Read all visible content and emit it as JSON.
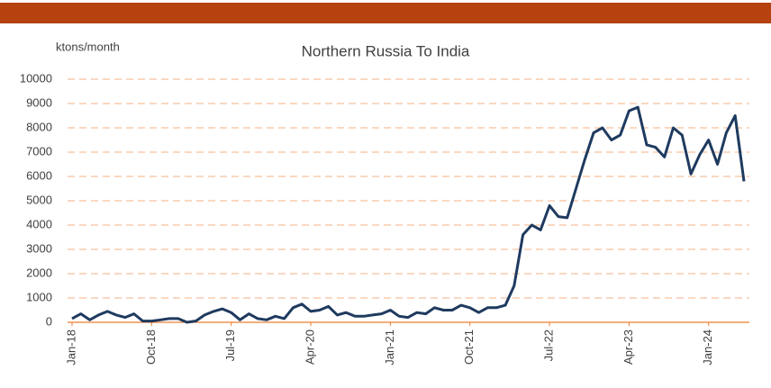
{
  "chart_data": {
    "type": "line",
    "title": "Northern Russia To India",
    "y_axis_label": "ktons/month",
    "categories": [
      "Jan-18",
      null,
      null,
      null,
      null,
      null,
      null,
      null,
      null,
      "Oct-18",
      null,
      null,
      null,
      null,
      null,
      null,
      null,
      null,
      "Jul-19",
      null,
      null,
      null,
      null,
      null,
      null,
      null,
      null,
      "Apr-20",
      null,
      null,
      null,
      null,
      null,
      null,
      null,
      null,
      "Jan-21",
      null,
      null,
      null,
      null,
      null,
      null,
      null,
      null,
      "Oct-21",
      null,
      null,
      null,
      null,
      null,
      null,
      null,
      null,
      "Jul-22",
      null,
      null,
      null,
      null,
      null,
      null,
      null,
      null,
      "Apr-23",
      null,
      null,
      null,
      null,
      null,
      null,
      null,
      null,
      "Jan-24",
      null,
      null,
      null,
      null
    ],
    "series": [
      {
        "name": "Northern Russia To India",
        "color": "#1f3a5f",
        "values": [
          150,
          350,
          100,
          300,
          450,
          300,
          200,
          350,
          50,
          50,
          100,
          150,
          150,
          0,
          50,
          300,
          450,
          550,
          400,
          100,
          350,
          150,
          100,
          250,
          150,
          600,
          750,
          450,
          500,
          650,
          300,
          400,
          250,
          250,
          300,
          350,
          500,
          250,
          200,
          400,
          350,
          600,
          500,
          500,
          700,
          600,
          400,
          600,
          600,
          700,
          1500,
          3600,
          4000,
          3800,
          4800,
          4350,
          4300,
          5500,
          6700,
          7800,
          8000,
          7500,
          7700,
          8700,
          8850,
          7300,
          7200,
          6800,
          8000,
          7700,
          6100,
          6900,
          7500,
          6500,
          7800,
          8500,
          5800
        ]
      }
    ],
    "ylim": [
      0,
      10000
    ],
    "yticks": [
      0,
      1000,
      2000,
      3000,
      4000,
      5000,
      6000,
      7000,
      8000,
      9000,
      10000
    ],
    "grid": true
  }
}
